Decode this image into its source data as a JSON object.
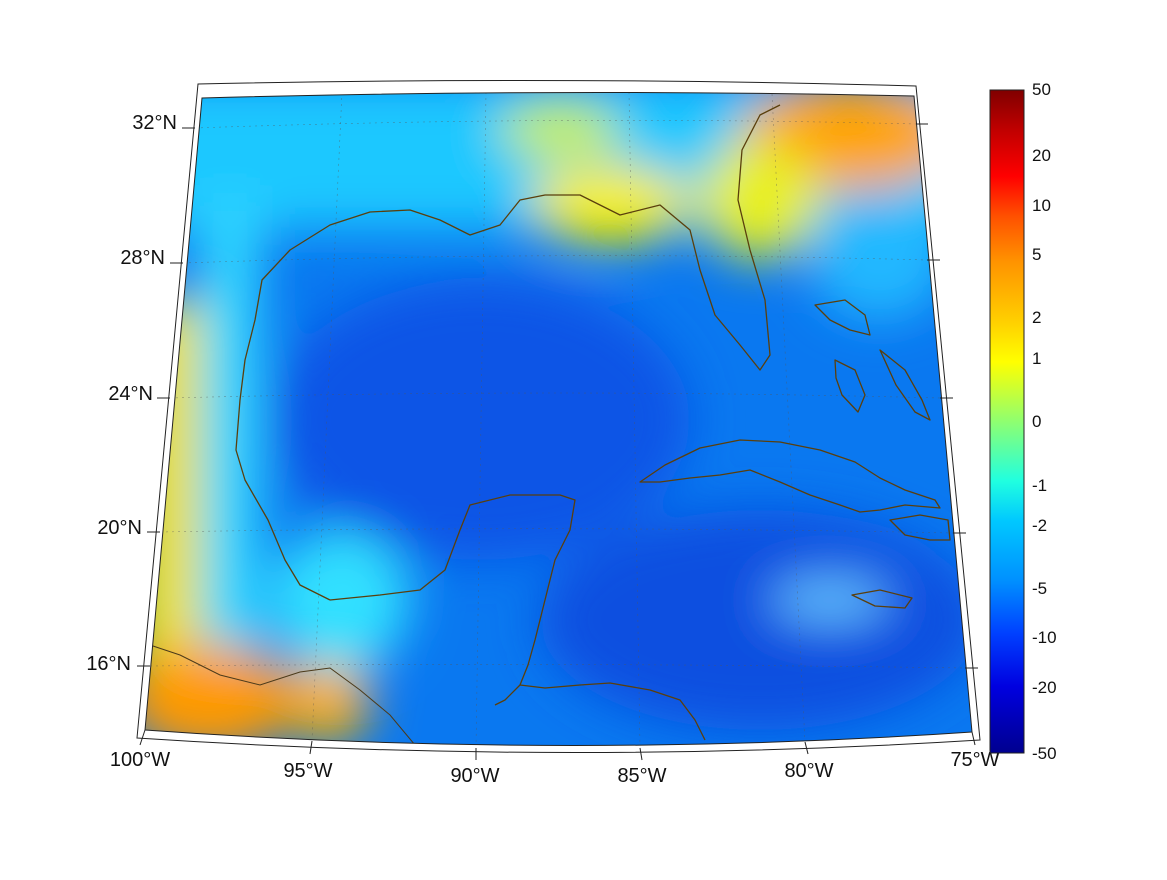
{
  "map": {
    "lon_labels": [
      "100°W",
      "95°W",
      "90°W",
      "85°W",
      "80°W",
      "75°W"
    ],
    "lat_labels": [
      "32°N",
      "28°N",
      "24°N",
      "20°N",
      "16°N"
    ],
    "lon_range": [
      -100,
      -75
    ],
    "lat_range": [
      14,
      33
    ]
  },
  "colorbar": {
    "ticks": [
      "50",
      "20",
      "10",
      "5",
      "2",
      "1",
      "0",
      "-1",
      "-2",
      "-5",
      "-10",
      "-20",
      "-50"
    ],
    "colors": [
      "#800000",
      "#ff0000",
      "#ff5000",
      "#ff9400",
      "#ffd000",
      "#ffff00",
      "#8fff70",
      "#20ffe0",
      "#00c8ff",
      "#0090ff",
      "#0040ff",
      "#0000d0",
      "#00008f"
    ]
  }
}
